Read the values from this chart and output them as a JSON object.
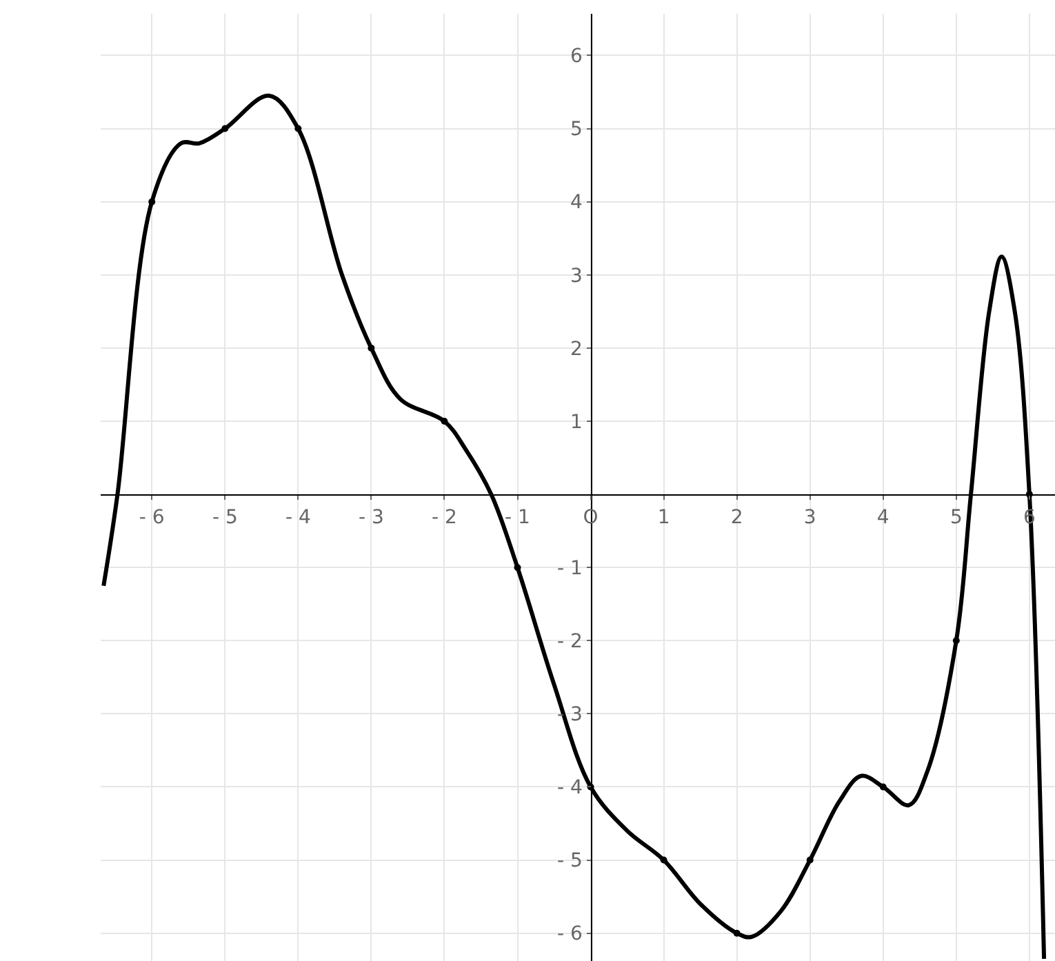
{
  "chart_data": {
    "type": "line",
    "xlim": [
      -6.7,
      6.35
    ],
    "ylim": [
      -6.38,
      6.57
    ],
    "xticks": [
      {
        "value": -6,
        "label": "- 6"
      },
      {
        "value": -5,
        "label": "- 5"
      },
      {
        "value": -4,
        "label": "- 4"
      },
      {
        "value": -3,
        "label": "- 3"
      },
      {
        "value": -2,
        "label": "- 2"
      },
      {
        "value": -1,
        "label": "- 1"
      },
      {
        "value": 0,
        "label": "O"
      },
      1,
      2,
      3,
      4,
      5,
      6
    ],
    "yticks": [
      {
        "value": -6,
        "label": "- 6"
      },
      {
        "value": -5,
        "label": "- 5"
      },
      {
        "value": -4,
        "label": "- 4"
      },
      {
        "value": -3,
        "label": "- 3"
      },
      {
        "value": -2,
        "label": "- 2"
      },
      {
        "value": -1,
        "label": "- 1"
      },
      1,
      2,
      3,
      4,
      5,
      6
    ],
    "grid": true,
    "line_style": "solid",
    "series": [
      {
        "color": "#000000",
        "x": [
          -6.66,
          -6.47,
          -6,
          -5.6,
          -5.35,
          -5,
          -4.4,
          -4,
          -3.4,
          -3,
          -2.6,
          -2,
          -1.7,
          -1.36,
          -1,
          -0.5,
          0,
          0.5,
          1,
          1.5,
          2,
          2.2,
          2.6,
          3,
          3.4,
          3.7,
          4,
          4.35,
          4.6,
          5,
          5.2,
          5.45,
          5.62,
          5.8,
          6,
          6.2
        ],
        "values": [
          -1.25,
          0,
          4,
          4.8,
          4.8,
          5,
          5.45,
          5,
          3,
          2,
          1.3,
          1,
          0.6,
          0,
          -1,
          -2.6,
          -4,
          -4.6,
          -5,
          -5.6,
          -6,
          -6.05,
          -5.7,
          -5,
          -4.2,
          -3.85,
          -4,
          -4.25,
          -3.8,
          -2,
          0,
          2.5,
          3.25,
          2.5,
          0,
          -6.35
        ]
      },
      {
        "type": "scatter",
        "marker": "circle",
        "color": "#000000",
        "x": [
          -6,
          -5,
          -4,
          -3,
          -2,
          -1,
          0,
          1,
          2,
          3,
          4,
          5,
          6
        ],
        "values": [
          4,
          5,
          5,
          2,
          1,
          -1,
          -4,
          -5,
          -6,
          -5,
          -4,
          -2,
          0
        ]
      }
    ]
  }
}
